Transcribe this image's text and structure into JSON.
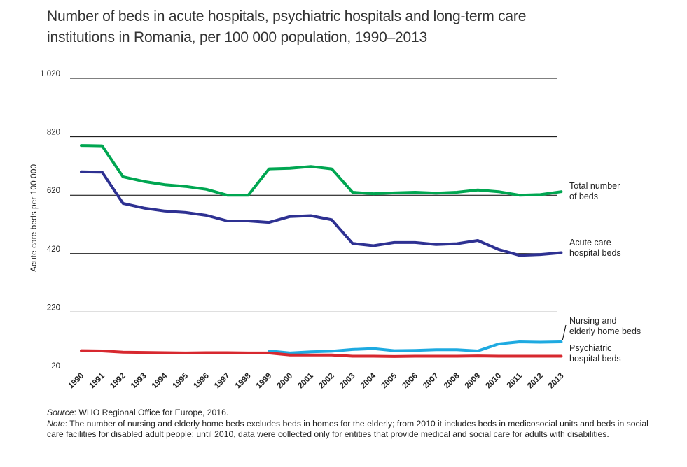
{
  "chart_data": {
    "type": "line",
    "title": "Number of beds in acute hospitals, psychiatric hospitals and long-term care institutions in Romania, per 100 000 population, 1990–2013",
    "ylabel": "Acute care beds per 100 000",
    "xlabel": "",
    "ylim": [
      20,
      1020
    ],
    "yticks": [
      20,
      220,
      420,
      620,
      820,
      1020
    ],
    "ytick_labels": [
      "20",
      "220",
      "420",
      "620",
      "820",
      "1 020"
    ],
    "x": [
      "1990",
      "1991",
      "1992",
      "1993",
      "1994",
      "1995",
      "1996",
      "1997",
      "1998",
      "1999",
      "2000",
      "2001",
      "2002",
      "2003",
      "2004",
      "2005",
      "2006",
      "2007",
      "2008",
      "2009",
      "2010",
      "2011",
      "2012",
      "2013"
    ],
    "grid": "horizontal",
    "legend": "inline labels at right end of lines",
    "series": [
      {
        "name": "Total number of beds",
        "label_lines": [
          "Total number",
          "of beds"
        ],
        "color": "#00a651",
        "values": [
          790,
          789,
          683,
          667,
          656,
          650,
          640,
          620,
          620,
          710,
          712,
          718,
          710,
          630,
          625,
          628,
          630,
          627,
          630,
          638,
          632,
          620,
          622,
          632
        ]
      },
      {
        "name": "Acute care hospital beds",
        "label_lines": [
          "Acute care",
          "hospital beds"
        ],
        "color": "#2e3192",
        "values": [
          700,
          699,
          592,
          576,
          566,
          561,
          551,
          532,
          532,
          527,
          547,
          550,
          536,
          455,
          447,
          458,
          458,
          451,
          454,
          465,
          434,
          414,
          417,
          423
        ]
      },
      {
        "name": "Nursing and elderly home beds",
        "label_lines": [
          "Nursing and",
          "elderly home beds"
        ],
        "color": "#1eaae1",
        "values": [
          null,
          null,
          null,
          null,
          null,
          null,
          null,
          null,
          null,
          87,
          80,
          84,
          86,
          92,
          95,
          88,
          89,
          91,
          91,
          87,
          111,
          118,
          117,
          118
        ]
      },
      {
        "name": "Psychiatric hospital beds",
        "label_lines": [
          "Psychiatric",
          "hospital beds"
        ],
        "color": "#d7282f",
        "values": [
          88,
          87,
          83,
          82,
          81,
          80,
          81,
          81,
          80,
          80,
          73,
          73,
          73,
          69,
          69,
          68,
          69,
          69,
          69,
          70,
          69,
          69,
          69,
          69
        ]
      }
    ]
  },
  "footnote": {
    "source_label": "Source",
    "source_text": ": WHO Regional Office for Europe, 2016.",
    "note_label": "Note",
    "note_text": ": The number of nursing and elderly home beds excludes beds in homes for the elderly; from 2010 it includes beds in medicosocial units and beds in social care facilities for disabled adult people; until 2010, data were collected only for entities that provide medical and social care for adults with disabilities."
  }
}
